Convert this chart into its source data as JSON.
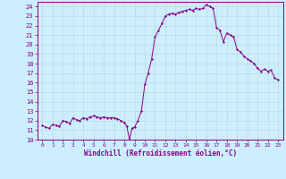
{
  "title": "",
  "xlabel": "Windchill (Refroidissement éolien,°C)",
  "ylabel": "",
  "bg_color": "#cceeff",
  "grid_color": "#b8ddd8",
  "line_color": "#880088",
  "marker_color": "#880088",
  "ylim": [
    10,
    24.5
  ],
  "xlim": [
    -0.5,
    23.5
  ],
  "yticks": [
    10,
    11,
    12,
    13,
    14,
    15,
    16,
    17,
    18,
    19,
    20,
    21,
    22,
    23,
    24
  ],
  "xticks": [
    0,
    1,
    2,
    3,
    4,
    5,
    6,
    7,
    8,
    9,
    10,
    11,
    12,
    13,
    14,
    15,
    16,
    17,
    18,
    19,
    20,
    21,
    22,
    23
  ],
  "x": [
    0,
    0.33,
    0.67,
    1,
    1.33,
    1.67,
    2,
    2.33,
    2.67,
    3,
    3.33,
    3.67,
    4,
    4.33,
    4.67,
    5,
    5.33,
    5.67,
    6,
    6.33,
    6.67,
    7,
    7.33,
    7.67,
    8,
    8.25,
    8.5,
    8.75,
    9,
    9.33,
    9.67,
    10,
    10.33,
    10.67,
    11,
    11.33,
    11.67,
    12,
    12.33,
    12.67,
    13,
    13.33,
    13.67,
    14,
    14.33,
    14.67,
    15,
    15.33,
    15.67,
    16,
    16.33,
    16.67,
    17,
    17.33,
    17.67,
    18,
    18.33,
    18.67,
    19,
    19.33,
    19.67,
    20,
    20.33,
    20.67,
    21,
    21.33,
    21.67,
    22,
    22.33,
    22.67,
    23
  ],
  "y": [
    11.5,
    11.3,
    11.2,
    11.6,
    11.5,
    11.4,
    12.0,
    11.9,
    11.7,
    12.3,
    12.1,
    12.0,
    12.3,
    12.2,
    12.4,
    12.5,
    12.4,
    12.3,
    12.4,
    12.3,
    12.3,
    12.3,
    12.2,
    12.0,
    11.8,
    11.4,
    10.0,
    11.2,
    11.3,
    12.0,
    13.0,
    15.8,
    17.0,
    18.5,
    20.8,
    21.5,
    22.2,
    23.0,
    23.2,
    23.3,
    23.2,
    23.4,
    23.5,
    23.6,
    23.7,
    23.6,
    23.8,
    23.7,
    23.8,
    24.2,
    24.0,
    23.8,
    21.8,
    21.5,
    20.3,
    21.2,
    21.0,
    20.8,
    19.5,
    19.2,
    18.8,
    18.5,
    18.3,
    18.0,
    17.5,
    17.2,
    17.4,
    17.2,
    17.3,
    16.5,
    16.3
  ]
}
